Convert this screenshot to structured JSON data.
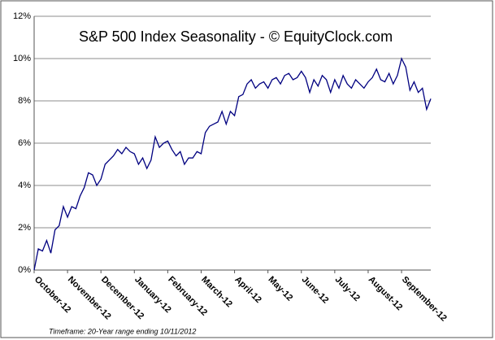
{
  "chart_data": {
    "type": "line",
    "title": "S&P 500 Index Seasonality - © EquityClock.com",
    "footnote": "Timeframe: 20-Year range ending 10/11/2012",
    "categories": [
      "October-12",
      null,
      null,
      null,
      null,
      null,
      null,
      null,
      "November-12",
      null,
      null,
      null,
      null,
      null,
      null,
      null,
      "December-12",
      null,
      null,
      null,
      null,
      null,
      null,
      null,
      "January-12",
      null,
      null,
      null,
      null,
      null,
      null,
      null,
      "February-12",
      null,
      null,
      null,
      null,
      null,
      null,
      null,
      "March-12",
      null,
      null,
      null,
      null,
      null,
      null,
      null,
      "April-12",
      null,
      null,
      null,
      null,
      null,
      null,
      null,
      "May-12",
      null,
      null,
      null,
      null,
      null,
      null,
      null,
      "June-12",
      null,
      null,
      null,
      null,
      null,
      null,
      null,
      "July-12",
      null,
      null,
      null,
      null,
      null,
      null,
      null,
      "August-12",
      null,
      null,
      null,
      null,
      null,
      null,
      null,
      "September-12",
      null,
      null,
      null,
      null,
      null,
      null,
      null
    ],
    "series": [
      {
        "color": "#000080",
        "values": [
          0,
          1.0,
          0.9,
          1.4,
          0.8,
          1.9,
          2.1,
          3.0,
          2.5,
          3.0,
          2.9,
          3.5,
          3.9,
          4.6,
          4.5,
          4.0,
          4.3,
          5.0,
          5.2,
          5.4,
          5.7,
          5.5,
          5.8,
          5.6,
          5.5,
          5.0,
          5.3,
          4.8,
          5.2,
          6.3,
          5.8,
          6.0,
          6.1,
          5.7,
          5.4,
          5.6,
          5.0,
          5.3,
          5.3,
          5.6,
          5.5,
          6.5,
          6.8,
          6.9,
          7.0,
          7.5,
          6.9,
          7.5,
          7.3,
          8.2,
          8.3,
          8.8,
          9.0,
          8.6,
          8.8,
          8.9,
          8.6,
          9.0,
          9.1,
          8.8,
          9.2,
          9.3,
          9.0,
          9.1,
          9.4,
          9.1,
          8.4,
          9.0,
          8.7,
          9.2,
          9.0,
          8.4,
          9.0,
          8.6,
          9.2,
          8.8,
          8.6,
          9.0,
          8.8,
          8.6,
          8.9,
          9.1,
          9.5,
          9.0,
          8.9,
          9.3,
          8.8,
          9.2,
          10.0,
          9.6,
          8.5,
          8.9,
          8.4,
          8.6,
          7.6,
          8.1
        ]
      }
    ],
    "ylim": [
      0,
      12
    ],
    "yticks": [
      {
        "value": 0,
        "label": "0%"
      },
      {
        "value": 2,
        "label": "2%"
      },
      {
        "value": 4,
        "label": "4%"
      },
      {
        "value": 6,
        "label": "6%"
      },
      {
        "value": 8,
        "label": "8%"
      },
      {
        "value": 10,
        "label": "10%"
      },
      {
        "value": 12,
        "label": "12%"
      }
    ],
    "grid": true
  }
}
